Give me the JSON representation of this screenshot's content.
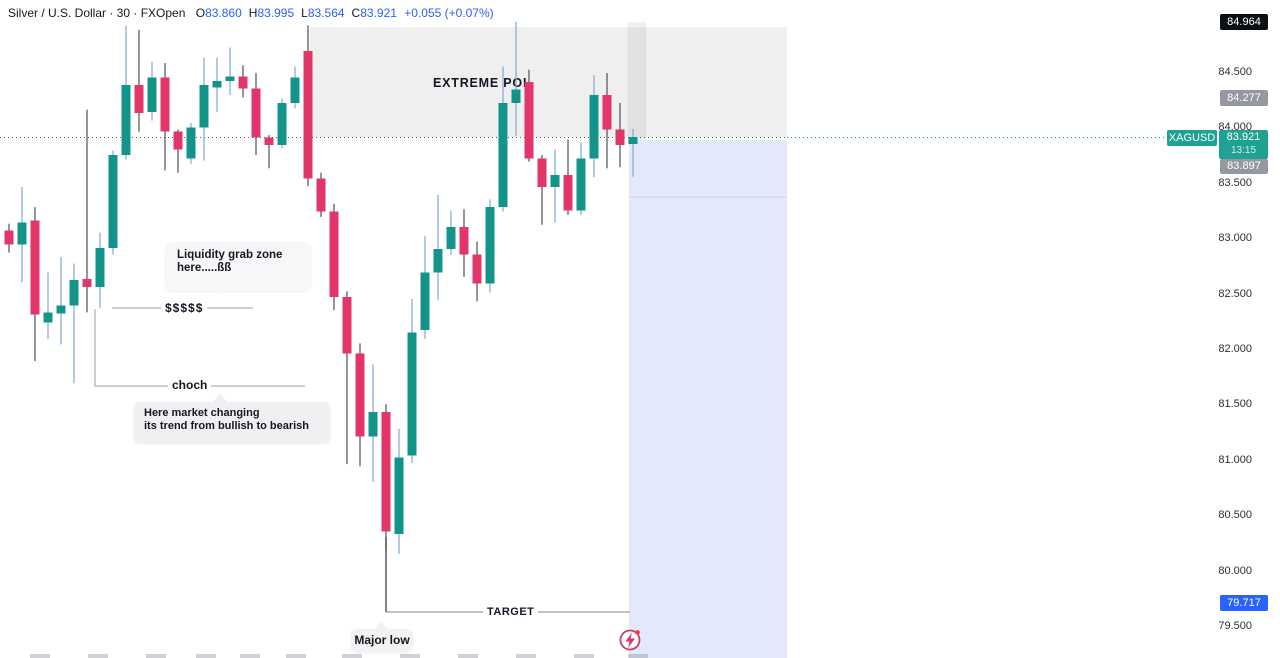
{
  "header": {
    "left": "Silver / U.S. Dollar · 30 · FXOpen",
    "ohlc": [
      [
        "O",
        "83.860"
      ],
      [
        "H",
        "83.995"
      ],
      [
        "L",
        "83.564"
      ],
      [
        "C",
        "83.921"
      ]
    ],
    "change": "+0.055 (+0.07%)"
  },
  "annotations": {
    "extreme_poi": "EXTREME POI",
    "liquidity_line1": "Liquidity grab zone",
    "liquidity_line2": "here.....ßß",
    "dollars": "$$$$$",
    "choch": "choch",
    "here_line1": "Here market changing",
    "here_line2": "its trend from bullish to bearish",
    "target": "TARGET",
    "major_low": "Major low"
  },
  "price_scale": {
    "ticks": [
      "84.500",
      "84.000",
      "83.500",
      "83.000",
      "82.500",
      "82.000",
      "81.500",
      "81.000",
      "80.500",
      "80.000",
      "79.500"
    ],
    "badge_high": "84.964",
    "badge_gray_upper": "84.277",
    "symbol_badge": "XAGUSD",
    "current_price": "83.921",
    "countdown": "13:15",
    "badge_gray_lower": "83.897",
    "badge_target": "79.717"
  },
  "colors": {
    "up": "#13948a",
    "down": "#e2366b",
    "wick_up": "#7fa6d9",
    "wick_down": "#4d4f56",
    "zone_gray": "#efefef",
    "zone_blue": "#e3e9fb",
    "badge_black": "#0b0e14",
    "badge_gray": "#9598a1",
    "badge_teal": "#1fa294",
    "badge_blue": "#2962ff",
    "dotted_left": "#5a5d66",
    "dotted_right": "#0f9b8e",
    "icon_crimson": "#cf3a6b",
    "icon_dot": "#ef4136"
  },
  "chart_data": {
    "type": "candlestick",
    "symbol": "XAGUSD",
    "interval_minutes": 30,
    "y_axis_range": [
      79.3,
      85.1
    ],
    "current_price": 83.921,
    "candles_ohlc": [
      [
        83.08,
        83.14,
        82.88,
        82.95
      ],
      [
        82.95,
        83.47,
        82.61,
        83.15
      ],
      [
        83.17,
        83.29,
        81.9,
        82.32
      ],
      [
        82.25,
        82.7,
        82.1,
        82.34
      ],
      [
        82.33,
        82.84,
        82.05,
        82.4
      ],
      [
        82.4,
        82.78,
        81.7,
        82.63
      ],
      [
        82.64,
        84.17,
        82.34,
        82.57
      ],
      [
        82.57,
        83.06,
        82.38,
        82.92
      ],
      [
        82.92,
        83.8,
        82.86,
        83.76
      ],
      [
        83.76,
        84.93,
        83.72,
        84.39
      ],
      [
        84.39,
        84.89,
        83.97,
        84.14
      ],
      [
        84.15,
        84.6,
        84.07,
        84.46
      ],
      [
        84.46,
        84.59,
        83.62,
        83.97
      ],
      [
        83.97,
        83.99,
        83.6,
        83.81
      ],
      [
        83.73,
        84.05,
        83.68,
        84.01
      ],
      [
        84.01,
        84.64,
        83.71,
        84.39
      ],
      [
        84.37,
        84.64,
        84.15,
        84.43
      ],
      [
        84.43,
        84.73,
        84.3,
        84.47
      ],
      [
        84.47,
        84.57,
        84.28,
        84.36
      ],
      [
        84.36,
        84.5,
        83.76,
        83.92
      ],
      [
        83.92,
        83.94,
        83.64,
        83.85
      ],
      [
        83.85,
        84.27,
        83.82,
        84.23
      ],
      [
        84.23,
        84.56,
        84.18,
        84.46
      ],
      [
        84.7,
        84.93,
        83.48,
        83.55
      ],
      [
        83.55,
        83.6,
        83.2,
        83.25
      ],
      [
        83.25,
        83.32,
        82.36,
        82.48
      ],
      [
        82.48,
        82.53,
        80.97,
        81.97
      ],
      [
        81.97,
        82.06,
        80.95,
        81.22
      ],
      [
        81.22,
        81.87,
        80.81,
        81.44
      ],
      [
        81.44,
        81.51,
        80.19,
        80.36
      ],
      [
        80.34,
        81.29,
        80.16,
        81.03
      ],
      [
        81.05,
        82.46,
        80.98,
        82.16
      ],
      [
        82.18,
        83.03,
        82.1,
        82.7
      ],
      [
        82.7,
        83.4,
        82.45,
        82.91
      ],
      [
        82.91,
        83.26,
        82.86,
        83.11
      ],
      [
        83.11,
        83.27,
        82.66,
        82.86
      ],
      [
        82.86,
        82.98,
        82.44,
        82.6
      ],
      [
        82.6,
        83.36,
        82.52,
        83.29
      ],
      [
        83.29,
        84.56,
        83.25,
        84.23
      ],
      [
        84.23,
        84.964,
        83.93,
        84.35
      ],
      [
        84.42,
        84.53,
        83.7,
        83.73
      ],
      [
        83.73,
        83.76,
        83.13,
        83.47
      ],
      [
        83.47,
        83.81,
        83.15,
        83.58
      ],
      [
        83.58,
        83.9,
        83.22,
        83.26
      ],
      [
        83.26,
        83.87,
        83.22,
        83.73
      ],
      [
        83.73,
        84.48,
        83.56,
        84.3
      ],
      [
        84.3,
        84.5,
        83.64,
        83.99
      ],
      [
        83.99,
        84.23,
        83.65,
        83.85
      ],
      [
        83.86,
        83.995,
        83.564,
        83.921
      ]
    ],
    "zones": [
      {
        "name": "extreme_poi_supply_zone",
        "price_top": 84.92,
        "price_bottom": 83.96
      },
      {
        "name": "target_projection_zone",
        "price_top": 83.897,
        "price_bottom": 79.3
      }
    ],
    "levels": [
      {
        "name": "current_price_line",
        "price": 83.921
      },
      {
        "name": "high_label",
        "price": 84.964
      },
      {
        "name": "upper_gray_label",
        "price": 84.277
      },
      {
        "name": "lower_gray_label",
        "price": 83.897
      },
      {
        "name": "target_level",
        "price": 79.717
      }
    ]
  }
}
